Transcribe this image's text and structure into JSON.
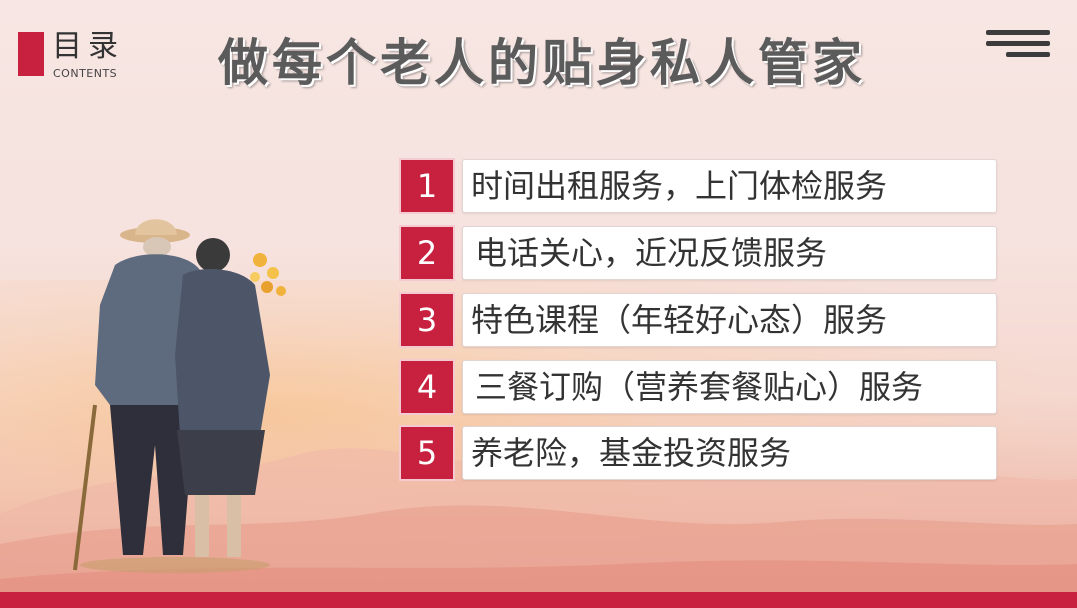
{
  "header": {
    "toc_title": "目录",
    "toc_subtitle": "CONTENTS",
    "page_title": "做每个老人的贴身私人管家"
  },
  "items": [
    {
      "number": "1",
      "text": "时间出租服务，上门体检服务"
    },
    {
      "number": "2",
      "text": "电话关心，近况反馈服务"
    },
    {
      "number": "3",
      "text": "特色课程（年轻好心态）服务"
    },
    {
      "number": "4",
      "text": "三餐订购（营养套餐贴心）服务"
    },
    {
      "number": "5",
      "text": "养老险，基金投资服务"
    }
  ],
  "colors": {
    "accent": "#c8203f",
    "title_text": "#5b5b5b",
    "body_text": "#333333"
  },
  "icons": [
    "menu-icon"
  ],
  "illustration": "elderly-couple-watercolor"
}
